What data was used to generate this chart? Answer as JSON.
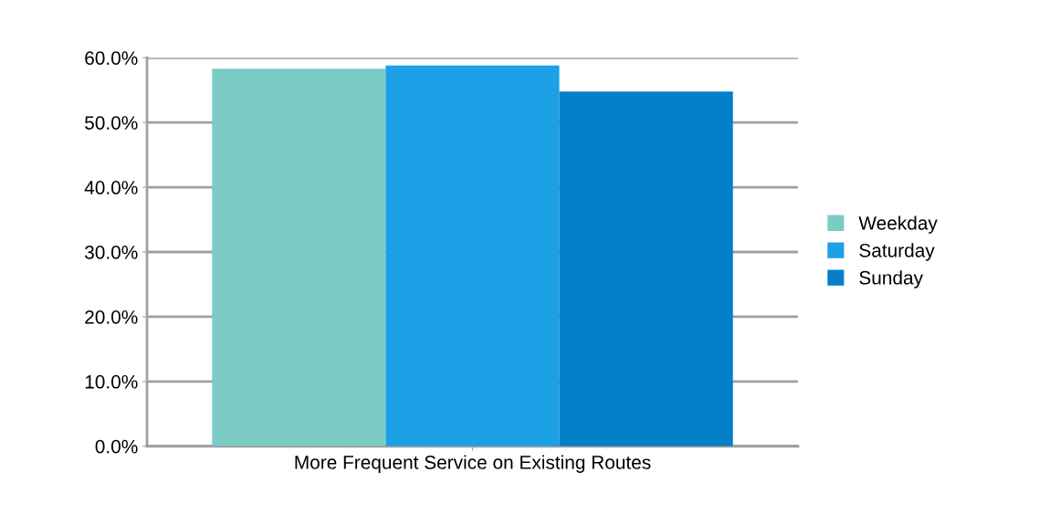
{
  "chart_data": {
    "type": "bar",
    "categories": [
      "More Frequent Service on Existing Routes"
    ],
    "series": [
      {
        "name": "Weekday",
        "color": "#7accc4",
        "values": [
          58.3
        ]
      },
      {
        "name": "Saturday",
        "color": "#1ca0e6",
        "values": [
          58.8
        ]
      },
      {
        "name": "Sunday",
        "color": "#047fc8",
        "values": [
          54.8
        ]
      }
    ],
    "ylim": [
      0,
      60
    ],
    "yticks": [
      {
        "value": 0,
        "label": "0.0%"
      },
      {
        "value": 10,
        "label": "10.0%"
      },
      {
        "value": 20,
        "label": "20.0%"
      },
      {
        "value": 30,
        "label": "30.0%"
      },
      {
        "value": 40,
        "label": "40.0%"
      },
      {
        "value": 50,
        "label": "50.0%"
      },
      {
        "value": 60,
        "label": "60.0%"
      }
    ],
    "grid": "y",
    "legend": "right"
  }
}
